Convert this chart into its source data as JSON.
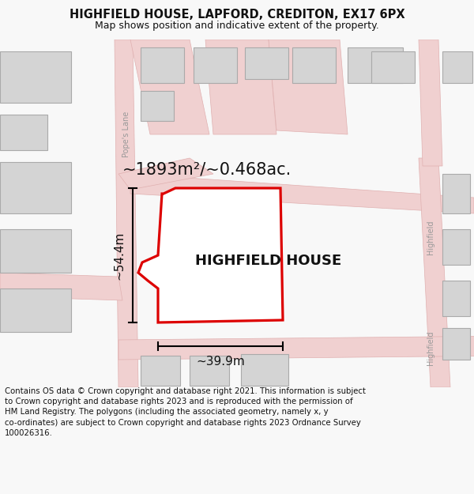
{
  "title": "HIGHFIELD HOUSE, LAPFORD, CREDITON, EX17 6PX",
  "subtitle": "Map shows position and indicative extent of the property.",
  "footer": "Contains OS data © Crown copyright and database right 2021. This information is subject to Crown copyright and database rights 2023 and is reproduced with the permission of HM Land Registry. The polygons (including the associated geometry, namely x, y co-ordinates) are subject to Crown copyright and database rights 2023 Ordnance Survey 100026316.",
  "area_label": "~1893m²/~0.468ac.",
  "width_label": "~39.9m",
  "height_label": "~54.4m",
  "property_label": "HIGHFIELD HOUSE",
  "road_label": "Pope's Lane",
  "right_road_label1": "Highfield",
  "right_road_label2": "Highfield",
  "bg_color": "#f8f8f8",
  "map_bg": "#ffffff",
  "road_color": "#f0d0d0",
  "road_edge": "#e0b0b0",
  "property_fill": "#ffffff",
  "property_outline": "#dd0000",
  "building_fill": "#d4d4d4",
  "building_outline": "#aaaaaa",
  "dim_color": "#111111",
  "label_color": "#111111",
  "road_label_color": "#999999",
  "footer_color": "#111111",
  "title_fontsize": 10.5,
  "subtitle_fontsize": 9.0,
  "area_fontsize": 15,
  "property_label_fontsize": 13,
  "dim_fontsize": 11,
  "road_label_fontsize": 7,
  "footer_fontsize": 7.3
}
